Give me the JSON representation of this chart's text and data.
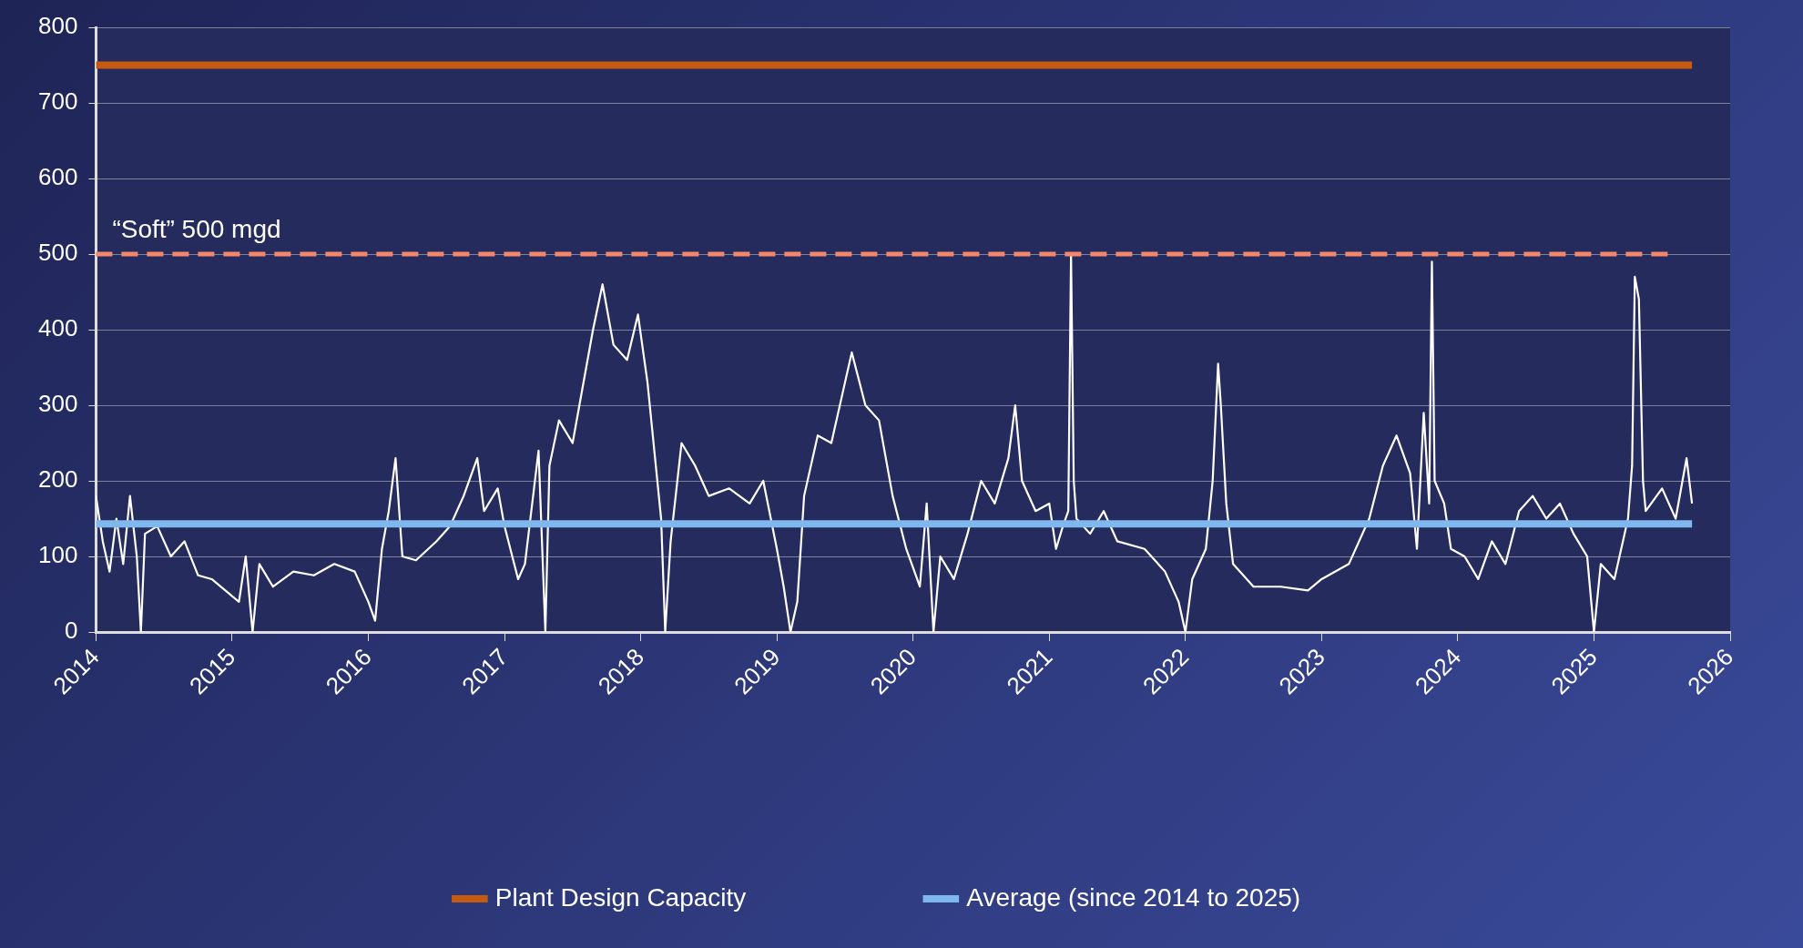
{
  "chart_data": {
    "type": "line",
    "xlim": [
      2014,
      2026
    ],
    "xticks": [
      2014,
      2015,
      2016,
      2017,
      2018,
      2019,
      2020,
      2021,
      2022,
      2023,
      2024,
      2025,
      2026
    ],
    "ylim": [
      0,
      800
    ],
    "yticks": [
      0,
      100,
      200,
      300,
      400,
      500,
      600,
      700,
      800
    ],
    "grid": "y",
    "legend": "bottom",
    "marker": "none",
    "series": [
      {
        "color": "#ffffff",
        "x": [
          2014.0,
          2014.05,
          2014.1,
          2014.15,
          2014.2,
          2014.25,
          2014.3,
          2014.33,
          2014.36,
          2014.45,
          2014.55,
          2014.65,
          2014.75,
          2014.85,
          2014.95,
          2015.05,
          2015.1,
          2015.15,
          2015.2,
          2015.3,
          2015.45,
          2015.6,
          2015.75,
          2015.9,
          2016.0,
          2016.05,
          2016.1,
          2016.15,
          2016.2,
          2016.25,
          2016.35,
          2016.5,
          2016.6,
          2016.7,
          2016.8,
          2016.85,
          2016.95,
          2017.0,
          2017.1,
          2017.15,
          2017.25,
          2017.3,
          2017.33,
          2017.4,
          2017.5,
          2017.55,
          2017.65,
          2017.72,
          2017.8,
          2017.9,
          2017.98,
          2018.05,
          2018.1,
          2018.15,
          2018.18,
          2018.22,
          2018.3,
          2018.4,
          2018.5,
          2018.65,
          2018.8,
          2018.9,
          2019.0,
          2019.05,
          2019.1,
          2019.15,
          2019.2,
          2019.3,
          2019.4,
          2019.5,
          2019.55,
          2019.65,
          2019.75,
          2019.85,
          2019.95,
          2020.05,
          2020.1,
          2020.15,
          2020.2,
          2020.3,
          2020.4,
          2020.5,
          2020.6,
          2020.7,
          2020.75,
          2020.8,
          2020.9,
          2021.0,
          2021.05,
          2021.1,
          2021.14,
          2021.16,
          2021.18,
          2021.2,
          2021.3,
          2021.4,
          2021.5,
          2021.7,
          2021.85,
          2021.95,
          2022.0,
          2022.05,
          2022.15,
          2022.2,
          2022.24,
          2022.26,
          2022.3,
          2022.35,
          2022.5,
          2022.7,
          2022.9,
          2023.0,
          2023.2,
          2023.35,
          2023.45,
          2023.55,
          2023.65,
          2023.7,
          2023.75,
          2023.79,
          2023.81,
          2023.83,
          2023.9,
          2023.95,
          2024.05,
          2024.15,
          2024.25,
          2024.35,
          2024.45,
          2024.55,
          2024.65,
          2024.75,
          2024.85,
          2024.95,
          2025.0,
          2025.05,
          2025.15,
          2025.25,
          2025.28,
          2025.3,
          2025.33,
          2025.36,
          2025.38,
          2025.5,
          2025.6,
          2025.68,
          2025.72
        ],
        "values": [
          180,
          120,
          80,
          150,
          90,
          180,
          100,
          0,
          130,
          140,
          100,
          120,
          75,
          70,
          55,
          40,
          100,
          0,
          90,
          60,
          80,
          75,
          90,
          80,
          40,
          15,
          110,
          160,
          230,
          100,
          95,
          120,
          140,
          180,
          230,
          160,
          190,
          140,
          70,
          90,
          240,
          0,
          220,
          280,
          250,
          300,
          400,
          460,
          380,
          360,
          420,
          330,
          240,
          150,
          0,
          120,
          250,
          220,
          180,
          190,
          170,
          200,
          110,
          60,
          0,
          40,
          180,
          260,
          250,
          330,
          370,
          300,
          280,
          180,
          110,
          60,
          170,
          0,
          100,
          70,
          130,
          200,
          170,
          230,
          300,
          200,
          160,
          170,
          110,
          140,
          160,
          500,
          200,
          150,
          130,
          160,
          120,
          110,
          80,
          40,
          0,
          70,
          110,
          200,
          355,
          300,
          170,
          90,
          60,
          60,
          55,
          70,
          90,
          150,
          220,
          260,
          210,
          110,
          290,
          170,
          490,
          200,
          170,
          110,
          100,
          70,
          120,
          90,
          160,
          180,
          150,
          170,
          130,
          100,
          0,
          90,
          70,
          150,
          220,
          470,
          440,
          200,
          160,
          190,
          150,
          230,
          170
        ]
      },
      {
        "name": "Plant Design Capacity",
        "color": "#c55a11",
        "x": [
          2014,
          2025.72
        ],
        "values": [
          750,
          750
        ]
      },
      {
        "name": "Average (since 2014 to 2025)",
        "color": "#7fb8ee",
        "x": [
          2014,
          2025.72
        ],
        "values": [
          143,
          143
        ]
      }
    ],
    "ref_lines": [
      {
        "axis": "y",
        "value": 500,
        "label": "“Soft” 500 mgd",
        "color": "#f4876a",
        "line_style": "dashed"
      }
    ]
  }
}
